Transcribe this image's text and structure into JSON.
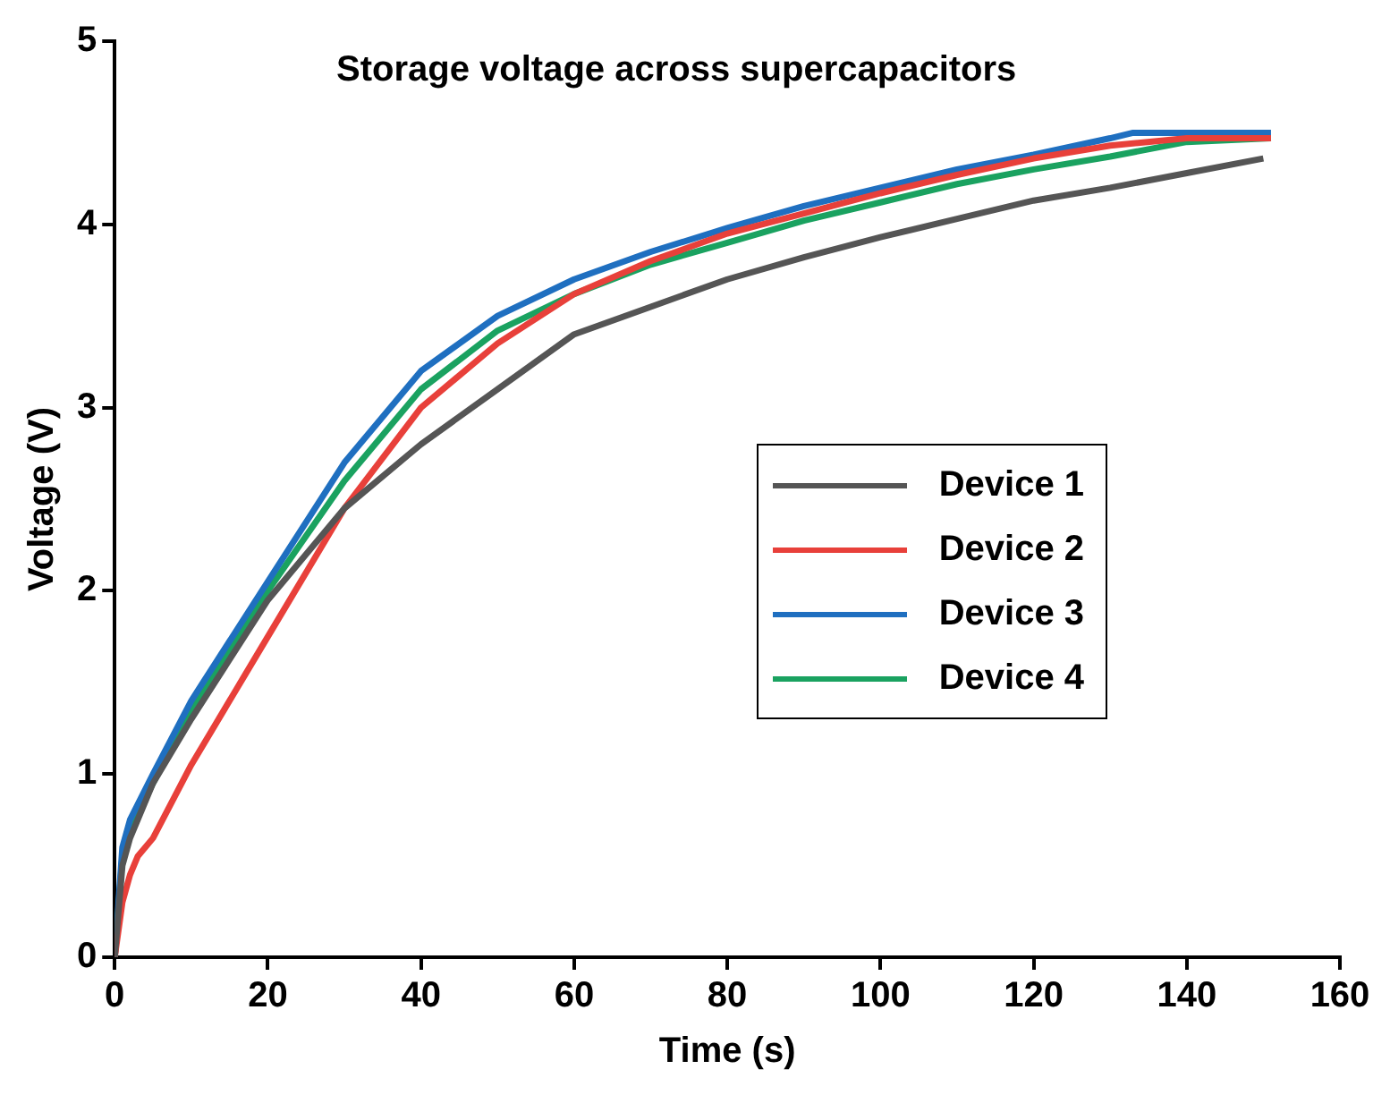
{
  "chart_data": {
    "type": "line",
    "title": "Storage voltage across supercapacitors",
    "xlabel": "Time (s)",
    "ylabel": "Voltage (V)",
    "xlim": [
      0,
      160
    ],
    "xticks": [
      0,
      20,
      40,
      60,
      80,
      100,
      120,
      140,
      160
    ],
    "ylim": [
      0,
      5
    ],
    "yticks": [
      0,
      1,
      2,
      3,
      4,
      5
    ],
    "grid": false,
    "legend": "right",
    "marker": "none",
    "line_style": "solid",
    "series": [
      {
        "name": "Device 1",
        "color": "#555555",
        "x": [
          0,
          1,
          2,
          5,
          10,
          20,
          30,
          40,
          50,
          60,
          70,
          80,
          90,
          100,
          110,
          120,
          130,
          140,
          150
        ],
        "values": [
          0,
          0.5,
          0.65,
          0.95,
          1.3,
          1.95,
          2.45,
          2.8,
          3.1,
          3.4,
          3.55,
          3.7,
          3.82,
          3.93,
          4.03,
          4.13,
          4.2,
          4.28,
          4.36
        ]
      },
      {
        "name": "Device 2",
        "color": "#e8403a",
        "x": [
          0,
          1,
          2,
          3,
          5,
          10,
          20,
          30,
          40,
          50,
          60,
          70,
          80,
          90,
          100,
          110,
          120,
          130,
          140,
          151
        ],
        "values": [
          0,
          0.3,
          0.45,
          0.55,
          0.65,
          1.05,
          1.75,
          2.45,
          3.0,
          3.35,
          3.62,
          3.8,
          3.95,
          4.06,
          4.17,
          4.27,
          4.36,
          4.43,
          4.47,
          4.47
        ]
      },
      {
        "name": "Device 3",
        "color": "#1f6fc0",
        "x": [
          0,
          1,
          2,
          5,
          10,
          20,
          30,
          40,
          50,
          60,
          70,
          80,
          90,
          100,
          110,
          120,
          130,
          133,
          151
        ],
        "values": [
          0,
          0.6,
          0.75,
          1.0,
          1.4,
          2.05,
          2.7,
          3.2,
          3.5,
          3.7,
          3.85,
          3.98,
          4.1,
          4.2,
          4.3,
          4.38,
          4.47,
          4.5,
          4.5
        ]
      },
      {
        "name": "Device 4",
        "color": "#1aa260",
        "x": [
          0,
          1,
          2,
          5,
          10,
          20,
          30,
          40,
          50,
          60,
          70,
          80,
          90,
          100,
          110,
          120,
          130,
          140,
          151
        ],
        "values": [
          0,
          0.55,
          0.7,
          0.95,
          1.35,
          2.0,
          2.6,
          3.1,
          3.42,
          3.62,
          3.78,
          3.9,
          4.02,
          4.12,
          4.22,
          4.3,
          4.37,
          4.45,
          4.47
        ]
      }
    ]
  }
}
